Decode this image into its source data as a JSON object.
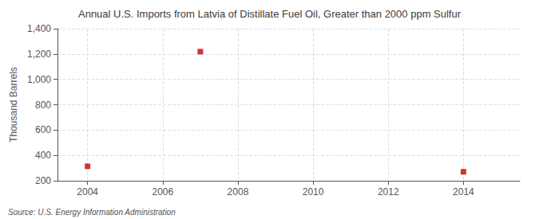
{
  "chart_data": {
    "type": "scatter",
    "title": "Annual U.S. Imports from Latvia of Distillate Fuel Oil, Greater than 2000 ppm Sulfur",
    "ylabel": "Thousand Barrels",
    "annotations": [
      "Source: U.S. Energy Information Administration"
    ],
    "x": [
      2004,
      2007,
      2014
    ],
    "values": [
      314,
      1219,
      271
    ],
    "color": "#cc0000",
    "marker": "square",
    "xlim": [
      2003.2,
      2015.5
    ],
    "xticks": [
      2004,
      2006,
      2008,
      2010,
      2012,
      2014
    ],
    "ylim": [
      200,
      1400
    ],
    "yticks": [
      200,
      400,
      600,
      800,
      {
        "value": 1000,
        "label": "1,000"
      },
      {
        "value": 1200,
        "label": "1,200"
      },
      {
        "value": 1400,
        "label": "1,400"
      }
    ],
    "grid": true
  }
}
